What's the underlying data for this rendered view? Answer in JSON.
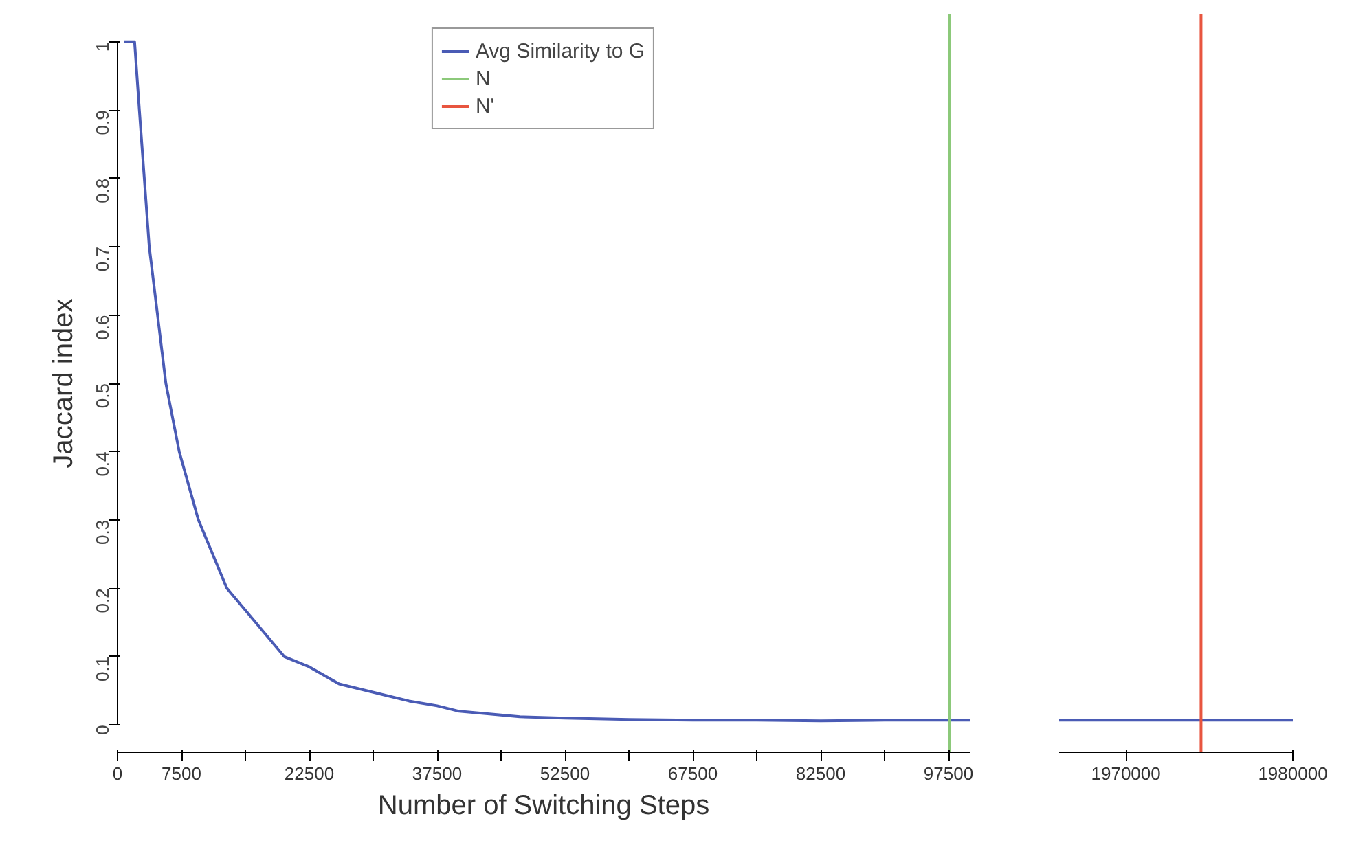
{
  "chart_data": [
    {
      "type": "line",
      "xlabel": "Number of Switching Steps",
      "ylabel": "Jaccard index",
      "xlim": [
        0,
        100000
      ],
      "ylim": [
        -0.04,
        1.04
      ],
      "xticks": [
        0,
        7500,
        {
          "value": 15000,
          "label": null
        },
        22500,
        {
          "value": 30000,
          "label": null
        },
        37500,
        {
          "value": 45000,
          "label": null
        },
        52500,
        {
          "value": 60000,
          "label": null
        },
        67500,
        {
          "value": 75000,
          "label": null
        },
        82500,
        {
          "value": 90000,
          "label": null
        },
        97500
      ],
      "yticks": [
        0,
        0.1,
        0.2,
        0.3,
        0.4,
        0.5,
        0.6,
        0.7,
        0.8,
        0.9,
        1
      ],
      "grid": false,
      "legend": "top",
      "series": [
        {
          "name": "Avg Similarity to G",
          "color": "#4a5bb5",
          "x": [
            800,
            2000,
            2560,
            3720,
            5670,
            7240,
            9490,
            12830,
            19570,
            22500,
            26000,
            34200,
            37500,
            40100,
            47200,
            52500,
            60000,
            67500,
            75000,
            82500,
            90000,
            100000
          ],
          "values": [
            1,
            1,
            0.9,
            0.7,
            0.5,
            0.4,
            0.3,
            0.2,
            0.1,
            0.085,
            0.06,
            0.035,
            0.028,
            0.02,
            0.012,
            0.01,
            0.008,
            0.007,
            0.007,
            0.006,
            0.007,
            0.007
          ]
        },
        {
          "name": "N",
          "color": "#8cc97a",
          "x": [
            97600,
            97600
          ],
          "values": [
            -0.04,
            1.04
          ]
        }
      ]
    },
    {
      "type": "line",
      "xlim": [
        1966000,
        1980000
      ],
      "ylim": [
        -0.04,
        1.04
      ],
      "xticks": [
        1970000,
        1980000
      ],
      "tick_labels": "x",
      "grid": false,
      "series": [
        {
          "color": "#4a5bb5",
          "x": [
            1966000,
            1980000
          ],
          "values": [
            0.007,
            0.007
          ]
        },
        {
          "name": "N'",
          "color": "#e8553f",
          "x": [
            1974500,
            1974500
          ],
          "values": [
            -0.04,
            1.04
          ]
        }
      ]
    }
  ]
}
